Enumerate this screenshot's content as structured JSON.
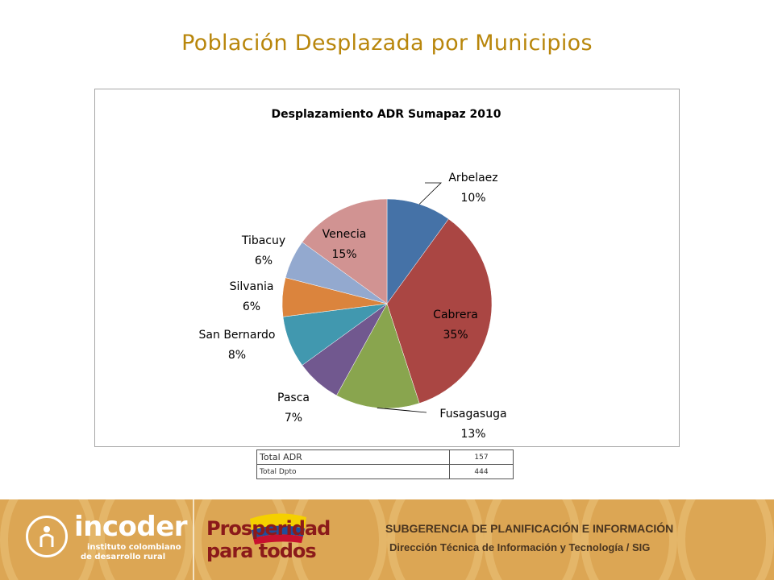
{
  "page": {
    "title": "Población Desplazada por Municipios"
  },
  "chart_data": {
    "type": "pie",
    "title": "Desplazamiento ADR Sumapaz 2010",
    "categories": [
      "Arbelaez",
      "Cabrera",
      "Fusagasuga",
      "Pasca",
      "San Bernardo",
      "Silvania",
      "Tibacuy",
      "Venecia"
    ],
    "values": [
      10,
      35,
      13,
      7,
      8,
      6,
      6,
      15
    ],
    "labels": [
      "10%",
      "35%",
      "13%",
      "7%",
      "8%",
      "6%",
      "6%",
      "15%"
    ],
    "colors": [
      "#4572a7",
      "#aa4643",
      "#89a54e",
      "#71588f",
      "#4198af",
      "#db843d",
      "#93a9cf",
      "#d19392"
    ],
    "legend": "none"
  },
  "summary_table": {
    "rows": [
      {
        "label": "Total ADR",
        "value": "157"
      },
      {
        "label": "Total Dpto",
        "value": "444"
      }
    ]
  },
  "footer": {
    "brand": "incoder",
    "brand_sub1": "instituto colombiano",
    "brand_sub2": "de desarrollo rural",
    "slogan1": "Prosperidad",
    "slogan2": "para todos",
    "line1": "SUBGERENCIA DE PLANIFICACIÓN E INFORMACIÓN",
    "line2": "Dirección Técnica de Información y Tecnología / SIG",
    "colors": {
      "background": "#dca654",
      "text": "#4a3520",
      "slogan": "#8b1a1a"
    }
  }
}
